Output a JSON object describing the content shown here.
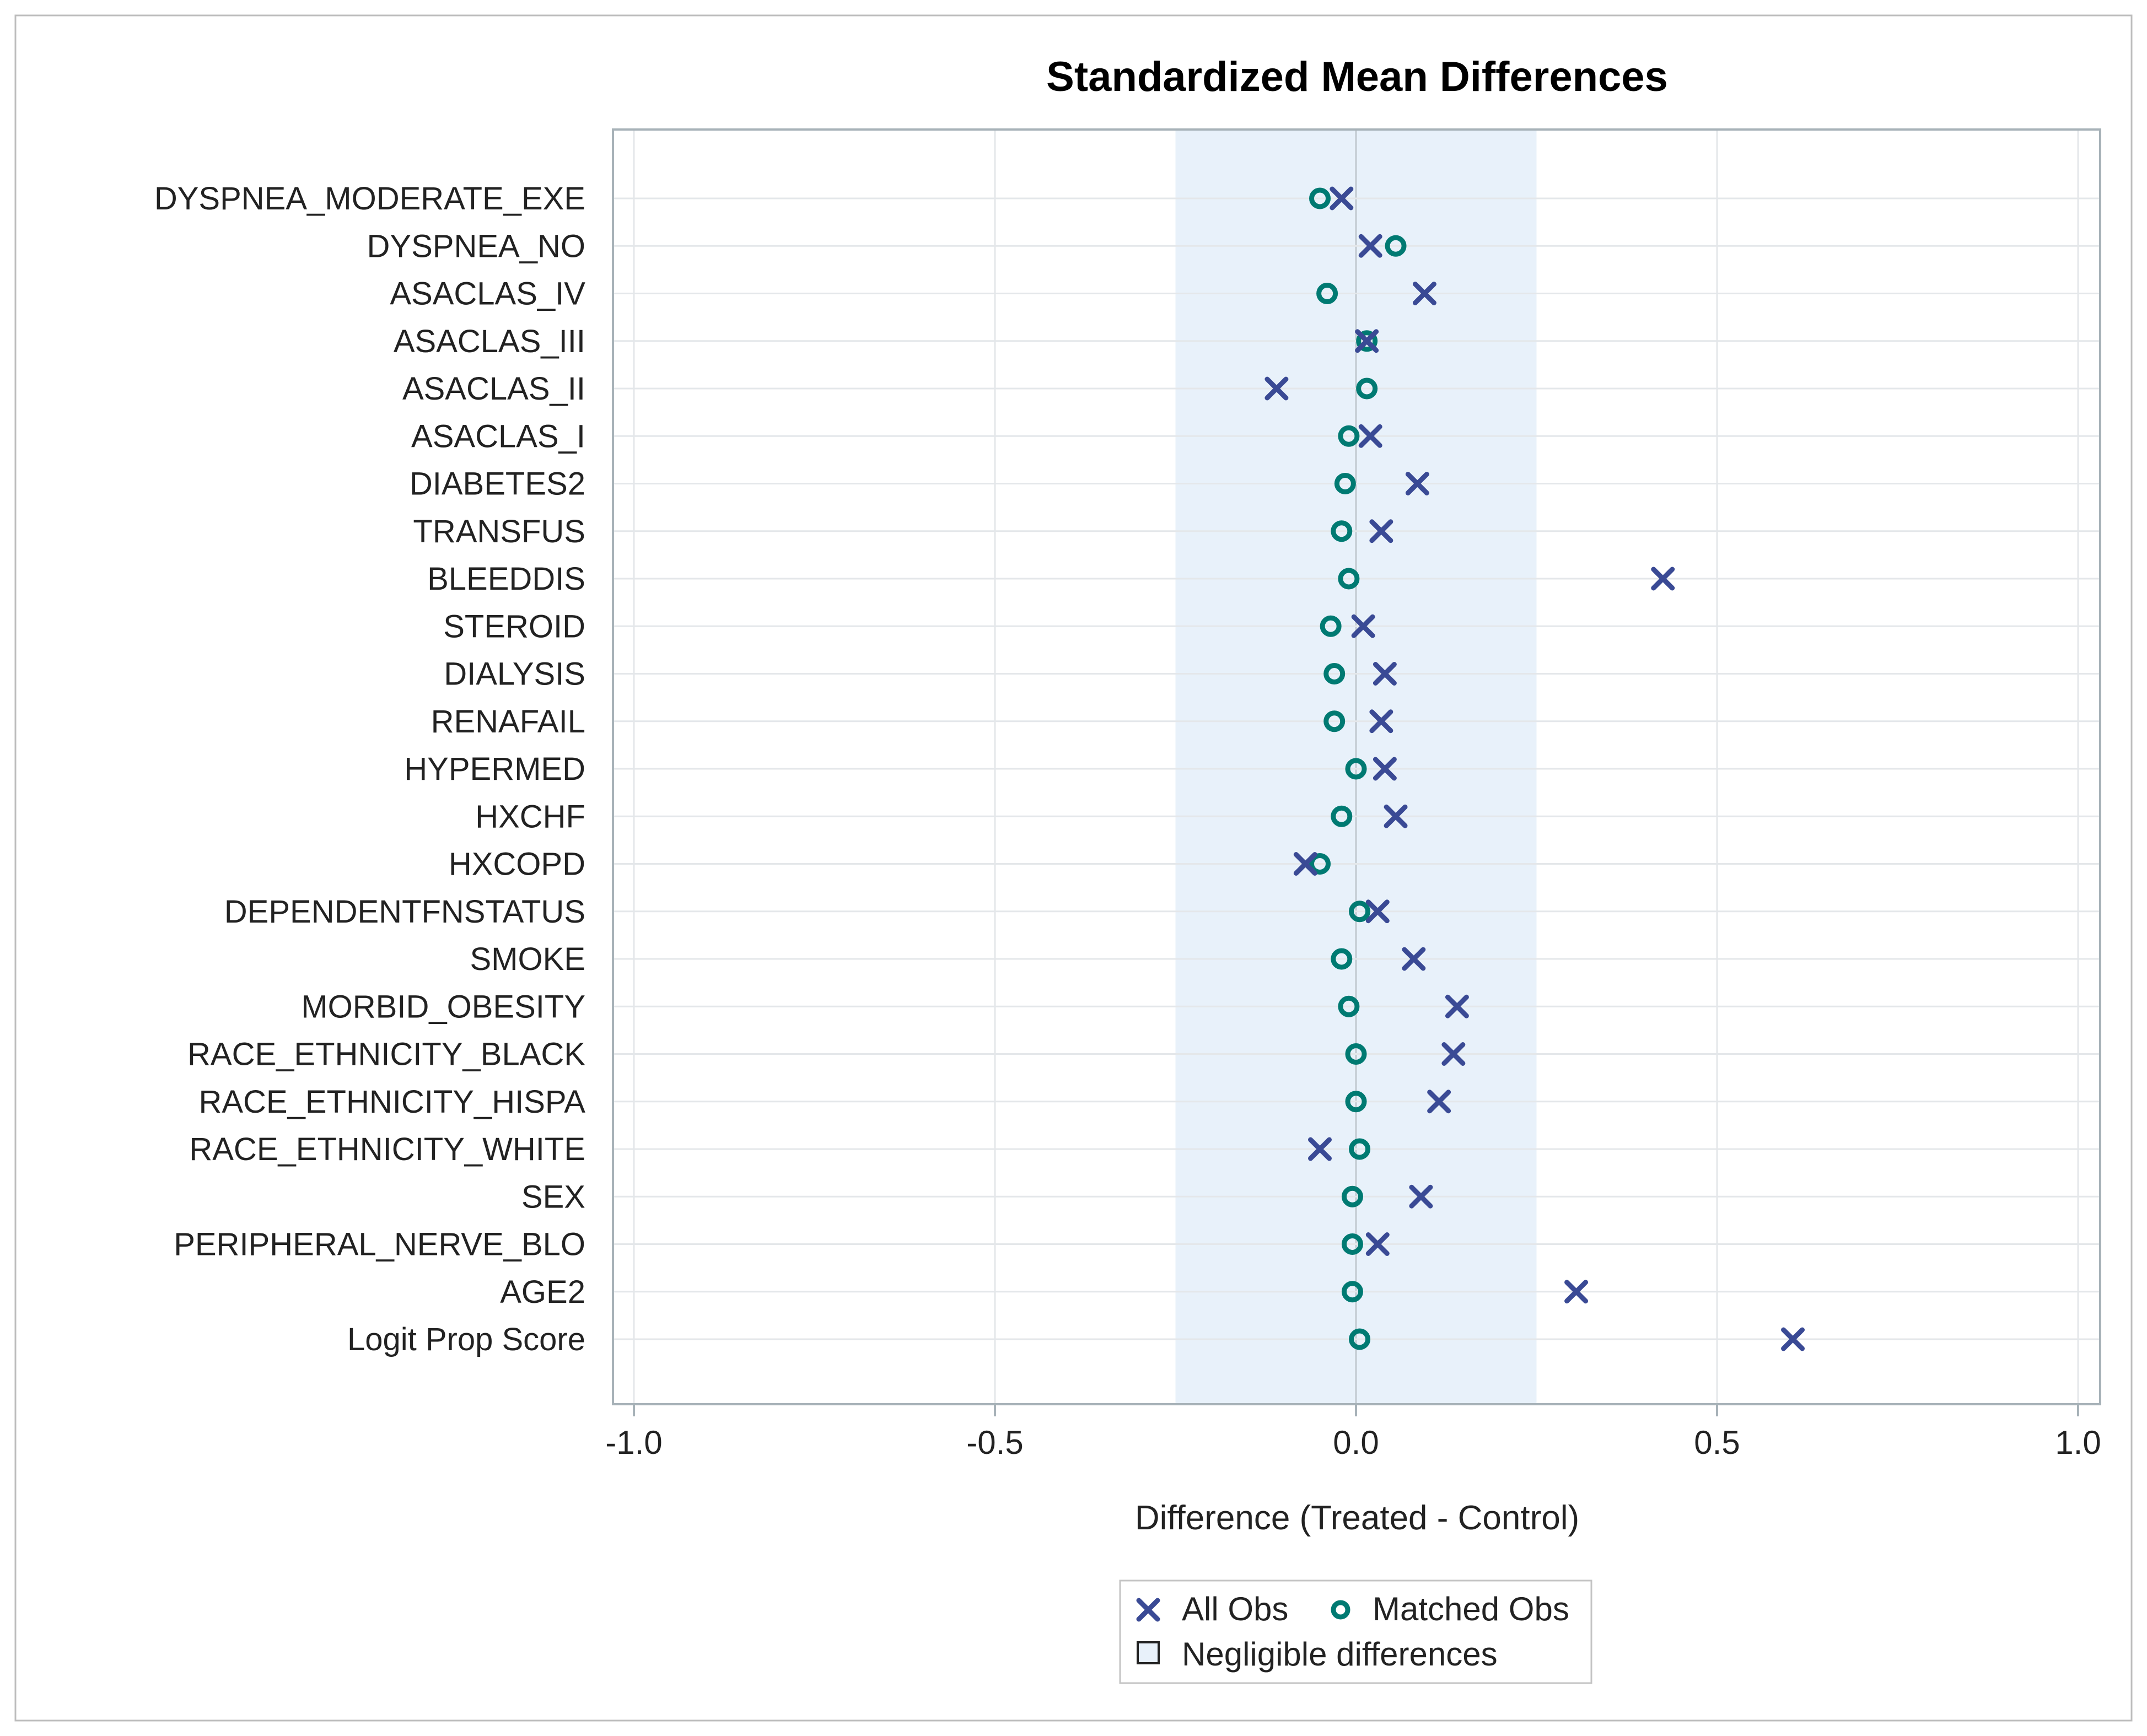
{
  "chart_data": {
    "type": "scatter",
    "title": "Standardized Mean Differences",
    "xlabel": "Difference (Treated - Control)",
    "ylabel": "",
    "xlim": [
      -1.0,
      1.0
    ],
    "xticks": [
      -1.0,
      -0.5,
      0.0,
      0.5,
      1.0
    ],
    "xtick_labels": [
      "-1.0",
      "-0.5",
      "0.0",
      "0.5",
      "1.0"
    ],
    "negligible_band": [
      -0.25,
      0.25
    ],
    "categories": [
      "DYSPNEA_MODERATE_EXE",
      "DYSPNEA_NO",
      "ASACLAS_IV",
      "ASACLAS_III",
      "ASACLAS_II",
      "ASACLAS_I",
      "DIABETES2",
      "TRANSFUS",
      "BLEEDDIS",
      "STEROID",
      "DIALYSIS",
      "RENAFAIL",
      "HYPERMED",
      "HXCHF",
      "HXCOPD",
      "DEPENDENTFNSTATUS",
      "SMOKE",
      "MORBID_OBESITY",
      "RACE_ETHNICITY_BLACK",
      "RACE_ETHNICITY_HISPA",
      "RACE_ETHNICITY_WHITE",
      "SEX",
      "PERIPHERAL_NERVE_BLO",
      "AGE2",
      "Logit Prop Score"
    ],
    "series": [
      {
        "name": "All Obs",
        "marker": "x",
        "color": "#3a4a95",
        "values": [
          -0.02,
          0.02,
          0.095,
          0.015,
          -0.11,
          0.02,
          0.085,
          0.035,
          0.425,
          0.01,
          0.04,
          0.035,
          0.04,
          0.055,
          -0.07,
          0.03,
          0.08,
          0.14,
          0.135,
          0.115,
          -0.05,
          0.09,
          0.03,
          0.305,
          0.605
        ]
      },
      {
        "name": "Matched Obs",
        "marker": "o",
        "color": "#007a72",
        "values": [
          -0.05,
          0.055,
          -0.04,
          0.015,
          0.015,
          -0.01,
          -0.015,
          -0.02,
          -0.01,
          -0.035,
          -0.03,
          -0.03,
          0.0,
          -0.02,
          -0.05,
          0.005,
          -0.02,
          -0.01,
          0.0,
          0.0,
          0.005,
          -0.005,
          -0.005,
          -0.005,
          0.005
        ]
      }
    ],
    "legend": {
      "position": "bottom-center",
      "items": [
        {
          "label": "All Obs",
          "marker": "x",
          "color": "#3a4a95"
        },
        {
          "label": "Matched Obs",
          "marker": "o",
          "color": "#007a72"
        },
        {
          "label": "Negligible differences",
          "marker": "square",
          "color": "#e8f1fa"
        }
      ]
    }
  }
}
